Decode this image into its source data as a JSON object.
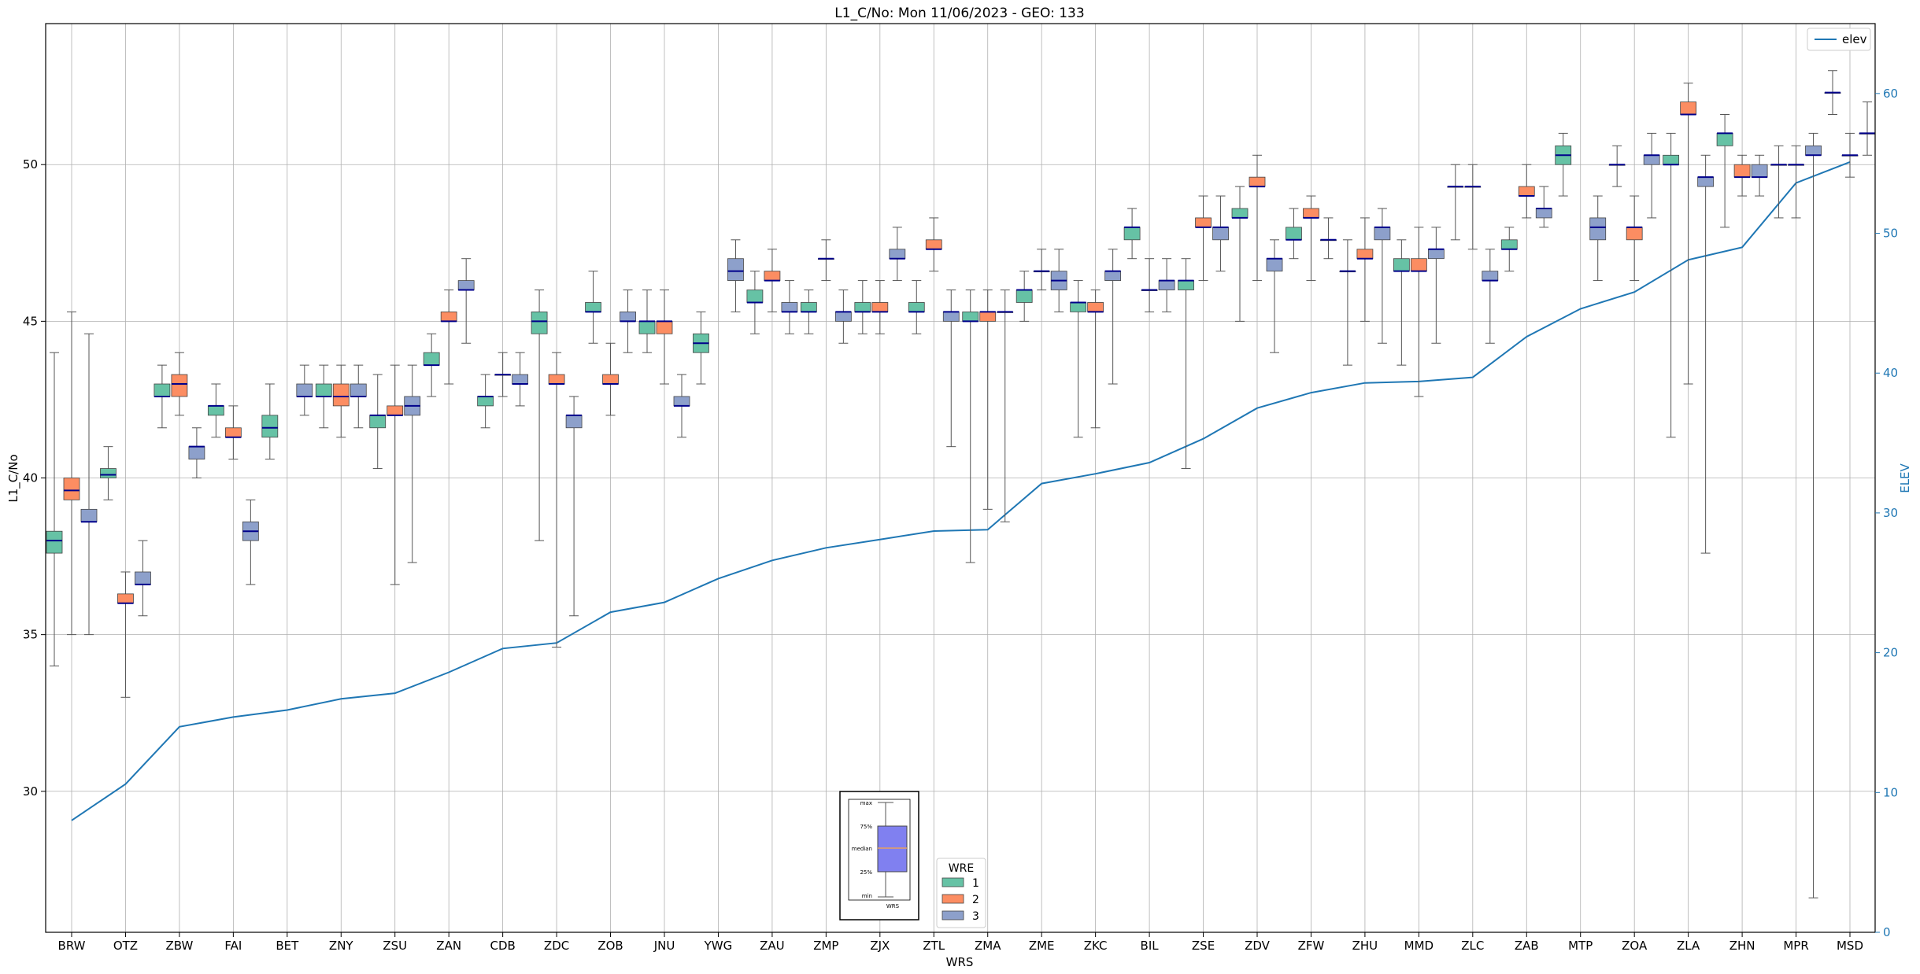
{
  "chart_data": {
    "type": "box",
    "title": "L1_C/No: Mon 11/06/2023 - GEO: 133",
    "xlabel": "WRS",
    "ylabel": "L1_C/No",
    "y2label": "ELEV",
    "ylim": [
      25.5,
      54.5
    ],
    "y2lim": [
      0,
      65
    ],
    "yticks": [
      30,
      35,
      40,
      45,
      50
    ],
    "y2ticks": [
      0,
      10,
      20,
      30,
      40,
      50,
      60
    ],
    "grid": true,
    "categories": [
      "BRW",
      "OTZ",
      "ZBW",
      "FAI",
      "BET",
      "ZNY",
      "ZSU",
      "ZAN",
      "CDB",
      "ZDC",
      "ZOB",
      "JNU",
      "YWG",
      "ZAU",
      "ZMP",
      "ZJX",
      "ZTL",
      "ZMA",
      "ZME",
      "ZKC",
      "BIL",
      "ZSE",
      "ZDV",
      "ZFW",
      "ZHU",
      "MMD",
      "ZLC",
      "ZAB",
      "MTP",
      "ZOA",
      "ZLA",
      "ZHN",
      "MPR",
      "MSD"
    ],
    "legend": {
      "title": "WRE",
      "entries": [
        "1",
        "2",
        "3"
      ],
      "colors": [
        "#66c2a5",
        "#fc8d62",
        "#8da0cb"
      ],
      "placement": "lower-center"
    },
    "line_legend": {
      "label": "elev",
      "placement": "top-right"
    },
    "box_key": {
      "labels": [
        "max",
        "75%",
        "median",
        "25%",
        "min"
      ],
      "xlabel": "WRS"
    },
    "elev": [
      8,
      10.6,
      14.7,
      15.4,
      15.9,
      16.7,
      17.1,
      18.6,
      20.3,
      20.7,
      22.9,
      23.6,
      25.3,
      26.6,
      27.5,
      28.1,
      28.7,
      28.8,
      32.1,
      32.8,
      33.6,
      35.3,
      37.5,
      38.6,
      39.3,
      39.4,
      39.7,
      42.6,
      44.6,
      45.8,
      48.1,
      49,
      53.6,
      55.1
    ],
    "boxes": [
      {
        "wrs": "BRW",
        "wre": 1,
        "min": 34,
        "q1": 37.6,
        "median": 38,
        "q3": 38.3,
        "max": 44
      },
      {
        "wrs": "BRW",
        "wre": 2,
        "min": 35,
        "q1": 39.3,
        "median": 39.6,
        "q3": 40,
        "max": 45.3
      },
      {
        "wrs": "BRW",
        "wre": 3,
        "min": 35,
        "q1": 38.6,
        "median": 38.6,
        "q3": 39,
        "max": 44.6
      },
      {
        "wrs": "OTZ",
        "wre": 1,
        "min": 39.3,
        "q1": 40,
        "median": 40.1,
        "q3": 40.3,
        "max": 41
      },
      {
        "wrs": "OTZ",
        "wre": 2,
        "min": 33,
        "q1": 36,
        "median": 36,
        "q3": 36.3,
        "max": 37
      },
      {
        "wrs": "OTZ",
        "wre": 3,
        "min": 35.6,
        "q1": 36.6,
        "median": 36.6,
        "q3": 37,
        "max": 38
      },
      {
        "wrs": "ZBW",
        "wre": 1,
        "min": 41.6,
        "q1": 42.6,
        "median": 42.6,
        "q3": 43,
        "max": 43.6
      },
      {
        "wrs": "ZBW",
        "wre": 2,
        "min": 42,
        "q1": 42.6,
        "median": 43,
        "q3": 43.3,
        "max": 44
      },
      {
        "wrs": "ZBW",
        "wre": 3,
        "min": 40,
        "q1": 40.6,
        "median": 41,
        "q3": 41,
        "max": 41.6
      },
      {
        "wrs": "FAI",
        "wre": 1,
        "min": 41.3,
        "q1": 42,
        "median": 42.3,
        "q3": 42.3,
        "max": 43
      },
      {
        "wrs": "FAI",
        "wre": 2,
        "min": 40.6,
        "q1": 41.3,
        "median": 41.3,
        "q3": 41.6,
        "max": 42.3
      },
      {
        "wrs": "FAI",
        "wre": 3,
        "min": 36.6,
        "q1": 38,
        "median": 38.3,
        "q3": 38.6,
        "max": 39.3
      },
      {
        "wrs": "BET",
        "wre": 1,
        "min": 40.6,
        "q1": 41.3,
        "median": 41.6,
        "q3": 42,
        "max": 43
      },
      {
        "wrs": "BET",
        "wre": 3,
        "min": 42,
        "q1": 42.6,
        "median": 42.6,
        "q3": 43,
        "max": 43.6
      },
      {
        "wrs": "ZNY",
        "wre": 1,
        "min": 41.6,
        "q1": 42.6,
        "median": 42.6,
        "q3": 43,
        "max": 43.6
      },
      {
        "wrs": "ZNY",
        "wre": 2,
        "min": 41.3,
        "q1": 42.3,
        "median": 42.6,
        "q3": 43,
        "max": 43.6
      },
      {
        "wrs": "ZNY",
        "wre": 3,
        "min": 41.6,
        "q1": 42.6,
        "median": 42.6,
        "q3": 43,
        "max": 43.6
      },
      {
        "wrs": "ZSU",
        "wre": 1,
        "min": 40.3,
        "q1": 41.6,
        "median": 42,
        "q3": 42,
        "max": 43.3
      },
      {
        "wrs": "ZSU",
        "wre": 2,
        "min": 36.6,
        "q1": 42,
        "median": 42,
        "q3": 42.3,
        "max": 43.6
      },
      {
        "wrs": "ZSU",
        "wre": 3,
        "min": 37.3,
        "q1": 42,
        "median": 42.3,
        "q3": 42.6,
        "max": 43.6
      },
      {
        "wrs": "ZAN",
        "wre": 1,
        "min": 42.6,
        "q1": 43.6,
        "median": 43.6,
        "q3": 44,
        "max": 44.6
      },
      {
        "wrs": "ZAN",
        "wre": 2,
        "min": 43,
        "q1": 45,
        "median": 45,
        "q3": 45.3,
        "max": 46
      },
      {
        "wrs": "ZAN",
        "wre": 3,
        "min": 44.3,
        "q1": 46,
        "median": 46,
        "q3": 46.3,
        "max": 47
      },
      {
        "wrs": "CDB",
        "wre": 1,
        "min": 41.6,
        "q1": 42.3,
        "median": 42.6,
        "q3": 42.6,
        "max": 43.3
      },
      {
        "wrs": "CDB",
        "wre": 2,
        "min": 42.6,
        "q1": 43.3,
        "median": 43.3,
        "q3": 43.3,
        "max": 44
      },
      {
        "wrs": "CDB",
        "wre": 3,
        "min": 42.3,
        "q1": 43,
        "median": 43,
        "q3": 43.3,
        "max": 44
      },
      {
        "wrs": "ZDC",
        "wre": 1,
        "min": 38,
        "q1": 44.6,
        "median": 45,
        "q3": 45.3,
        "max": 46
      },
      {
        "wrs": "ZDC",
        "wre": 2,
        "min": 34.6,
        "q1": 43,
        "median": 43,
        "q3": 43.3,
        "max": 44
      },
      {
        "wrs": "ZDC",
        "wre": 3,
        "min": 35.6,
        "q1": 41.6,
        "median": 42,
        "q3": 42,
        "max": 42.6
      },
      {
        "wrs": "ZOB",
        "wre": 1,
        "min": 44.3,
        "q1": 45.3,
        "median": 45.3,
        "q3": 45.6,
        "max": 46.6
      },
      {
        "wrs": "ZOB",
        "wre": 2,
        "min": 42,
        "q1": 43,
        "median": 43,
        "q3": 43.3,
        "max": 44.3
      },
      {
        "wrs": "ZOB",
        "wre": 3,
        "min": 44,
        "q1": 45,
        "median": 45,
        "q3": 45.3,
        "max": 46
      },
      {
        "wrs": "JNU",
        "wre": 1,
        "min": 44,
        "q1": 44.6,
        "median": 45,
        "q3": 45,
        "max": 46
      },
      {
        "wrs": "JNU",
        "wre": 2,
        "min": 43,
        "q1": 44.6,
        "median": 45,
        "q3": 45,
        "max": 46
      },
      {
        "wrs": "JNU",
        "wre": 3,
        "min": 41.3,
        "q1": 42.3,
        "median": 42.3,
        "q3": 42.6,
        "max": 43.3
      },
      {
        "wrs": "YWG",
        "wre": 1,
        "min": 43,
        "q1": 44,
        "median": 44.3,
        "q3": 44.6,
        "max": 45.3
      },
      {
        "wrs": "YWG",
        "wre": 3,
        "min": 45.3,
        "q1": 46.3,
        "median": 46.6,
        "q3": 47,
        "max": 47.6
      },
      {
        "wrs": "ZAU",
        "wre": 1,
        "min": 44.6,
        "q1": 45.6,
        "median": 45.6,
        "q3": 46,
        "max": 46.6
      },
      {
        "wrs": "ZAU",
        "wre": 2,
        "min": 45.3,
        "q1": 46.3,
        "median": 46.3,
        "q3": 46.6,
        "max": 47.3
      },
      {
        "wrs": "ZAU",
        "wre": 3,
        "min": 44.6,
        "q1": 45.3,
        "median": 45.3,
        "q3": 45.6,
        "max": 46.3
      },
      {
        "wrs": "ZMP",
        "wre": 1,
        "min": 44.6,
        "q1": 45.3,
        "median": 45.3,
        "q3": 45.6,
        "max": 46
      },
      {
        "wrs": "ZMP",
        "wre": 2,
        "min": 46.3,
        "q1": 47,
        "median": 47,
        "q3": 47,
        "max": 47.6
      },
      {
        "wrs": "ZMP",
        "wre": 3,
        "min": 44.3,
        "q1": 45,
        "median": 45.3,
        "q3": 45.3,
        "max": 46
      },
      {
        "wrs": "ZJX",
        "wre": 1,
        "min": 44.6,
        "q1": 45.3,
        "median": 45.3,
        "q3": 45.6,
        "max": 46.3
      },
      {
        "wrs": "ZJX",
        "wre": 2,
        "min": 44.6,
        "q1": 45.3,
        "median": 45.3,
        "q3": 45.6,
        "max": 46.3
      },
      {
        "wrs": "ZJX",
        "wre": 3,
        "min": 46.3,
        "q1": 47,
        "median": 47,
        "q3": 47.3,
        "max": 48
      },
      {
        "wrs": "ZTL",
        "wre": 1,
        "min": 44.6,
        "q1": 45.3,
        "median": 45.3,
        "q3": 45.6,
        "max": 46.3
      },
      {
        "wrs": "ZTL",
        "wre": 2,
        "min": 46.6,
        "q1": 47.3,
        "median": 47.3,
        "q3": 47.6,
        "max": 48.3
      },
      {
        "wrs": "ZTL",
        "wre": 3,
        "min": 41,
        "q1": 45,
        "median": 45.3,
        "q3": 45.3,
        "max": 46
      },
      {
        "wrs": "ZMA",
        "wre": 1,
        "min": 37.3,
        "q1": 45,
        "median": 45,
        "q3": 45.3,
        "max": 46
      },
      {
        "wrs": "ZMA",
        "wre": 2,
        "min": 39,
        "q1": 45,
        "median": 45.3,
        "q3": 45.3,
        "max": 46
      },
      {
        "wrs": "ZMA",
        "wre": 3,
        "min": 38.6,
        "q1": 45.3,
        "median": 45.3,
        "q3": 45.3,
        "max": 46
      },
      {
        "wrs": "ZME",
        "wre": 1,
        "min": 45,
        "q1": 45.6,
        "median": 46,
        "q3": 46,
        "max": 46.6
      },
      {
        "wrs": "ZME",
        "wre": 2,
        "min": 46,
        "q1": 46.6,
        "median": 46.6,
        "q3": 46.6,
        "max": 47.3
      },
      {
        "wrs": "ZME",
        "wre": 3,
        "min": 45.3,
        "q1": 46,
        "median": 46.3,
        "q3": 46.6,
        "max": 47.3
      },
      {
        "wrs": "ZKC",
        "wre": 1,
        "min": 41.3,
        "q1": 45.3,
        "median": 45.6,
        "q3": 45.6,
        "max": 46.3
      },
      {
        "wrs": "ZKC",
        "wre": 2,
        "min": 41.6,
        "q1": 45.3,
        "median": 45.3,
        "q3": 45.6,
        "max": 46
      },
      {
        "wrs": "ZKC",
        "wre": 3,
        "min": 43,
        "q1": 46.3,
        "median": 46.6,
        "q3": 46.6,
        "max": 47.3
      },
      {
        "wrs": "BIL",
        "wre": 1,
        "min": 47,
        "q1": 47.6,
        "median": 48,
        "q3": 48,
        "max": 48.6
      },
      {
        "wrs": "BIL",
        "wre": 2,
        "min": 45.3,
        "q1": 46,
        "median": 46,
        "q3": 46,
        "max": 47
      },
      {
        "wrs": "BIL",
        "wre": 3,
        "min": 45.3,
        "q1": 46,
        "median": 46.3,
        "q3": 46.3,
        "max": 47
      },
      {
        "wrs": "ZSE",
        "wre": 1,
        "min": 40.3,
        "q1": 46,
        "median": 46.3,
        "q3": 46.3,
        "max": 47
      },
      {
        "wrs": "ZSE",
        "wre": 2,
        "min": 46.3,
        "q1": 48,
        "median": 48,
        "q3": 48.3,
        "max": 49
      },
      {
        "wrs": "ZSE",
        "wre": 3,
        "min": 46.6,
        "q1": 47.6,
        "median": 48,
        "q3": 48,
        "max": 49
      },
      {
        "wrs": "ZDV",
        "wre": 1,
        "min": 45,
        "q1": 48.3,
        "median": 48.3,
        "q3": 48.6,
        "max": 49.3
      },
      {
        "wrs": "ZDV",
        "wre": 2,
        "min": 46.3,
        "q1": 49.3,
        "median": 49.3,
        "q3": 49.6,
        "max": 50.3
      },
      {
        "wrs": "ZDV",
        "wre": 3,
        "min": 44,
        "q1": 46.6,
        "median": 47,
        "q3": 47,
        "max": 47.6
      },
      {
        "wrs": "ZFW",
        "wre": 1,
        "min": 47,
        "q1": 47.6,
        "median": 47.6,
        "q3": 48,
        "max": 48.6
      },
      {
        "wrs": "ZFW",
        "wre": 2,
        "min": 46.3,
        "q1": 48.3,
        "median": 48.3,
        "q3": 48.6,
        "max": 49
      },
      {
        "wrs": "ZFW",
        "wre": 3,
        "min": 47,
        "q1": 47.6,
        "median": 47.6,
        "q3": 47.6,
        "max": 48.3
      },
      {
        "wrs": "ZHU",
        "wre": 1,
        "min": 43.6,
        "q1": 46.6,
        "median": 46.6,
        "q3": 46.6,
        "max": 47.6
      },
      {
        "wrs": "ZHU",
        "wre": 2,
        "min": 45,
        "q1": 47,
        "median": 47,
        "q3": 47.3,
        "max": 48.3
      },
      {
        "wrs": "ZHU",
        "wre": 3,
        "min": 44.3,
        "q1": 47.6,
        "median": 48,
        "q3": 48,
        "max": 48.6
      },
      {
        "wrs": "MMD",
        "wre": 1,
        "min": 43.6,
        "q1": 46.6,
        "median": 46.6,
        "q3": 47,
        "max": 47.6
      },
      {
        "wrs": "MMD",
        "wre": 2,
        "min": 42.6,
        "q1": 46.6,
        "median": 46.6,
        "q3": 47,
        "max": 48
      },
      {
        "wrs": "MMD",
        "wre": 3,
        "min": 44.3,
        "q1": 47,
        "median": 47.3,
        "q3": 47.3,
        "max": 48
      },
      {
        "wrs": "ZLC",
        "wre": 1,
        "min": 47.6,
        "q1": 49.3,
        "median": 49.3,
        "q3": 49.3,
        "max": 50
      },
      {
        "wrs": "ZLC",
        "wre": 2,
        "min": 47.3,
        "q1": 49.3,
        "median": 49.3,
        "q3": 49.3,
        "max": 50
      },
      {
        "wrs": "ZLC",
        "wre": 3,
        "min": 44.3,
        "q1": 46.3,
        "median": 46.3,
        "q3": 46.6,
        "max": 47.3
      },
      {
        "wrs": "ZAB",
        "wre": 1,
        "min": 46.6,
        "q1": 47.3,
        "median": 47.3,
        "q3": 47.6,
        "max": 48
      },
      {
        "wrs": "ZAB",
        "wre": 2,
        "min": 48.3,
        "q1": 49,
        "median": 49,
        "q3": 49.3,
        "max": 50
      },
      {
        "wrs": "ZAB",
        "wre": 3,
        "min": 48,
        "q1": 48.3,
        "median": 48.6,
        "q3": 48.6,
        "max": 49.3
      },
      {
        "wrs": "MTP",
        "wre": 1,
        "min": 49,
        "q1": 50,
        "median": 50.3,
        "q3": 50.6,
        "max": 51
      },
      {
        "wrs": "MTP",
        "wre": 3,
        "min": 46.3,
        "q1": 47.6,
        "median": 48,
        "q3": 48.3,
        "max": 49
      },
      {
        "wrs": "ZOA",
        "wre": 1,
        "min": 49.3,
        "q1": 50,
        "median": 50,
        "q3": 50,
        "max": 50.6
      },
      {
        "wrs": "ZOA",
        "wre": 2,
        "min": 46.3,
        "q1": 47.6,
        "median": 48,
        "q3": 48,
        "max": 49
      },
      {
        "wrs": "ZOA",
        "wre": 3,
        "min": 48.3,
        "q1": 50,
        "median": 50.3,
        "q3": 50.3,
        "max": 51
      },
      {
        "wrs": "ZLA",
        "wre": 1,
        "min": 41.3,
        "q1": 50,
        "median": 50,
        "q3": 50.3,
        "max": 51
      },
      {
        "wrs": "ZLA",
        "wre": 2,
        "min": 43,
        "q1": 51.6,
        "median": 51.6,
        "q3": 52,
        "max": 52.6
      },
      {
        "wrs": "ZLA",
        "wre": 3,
        "min": 37.6,
        "q1": 49.3,
        "median": 49.6,
        "q3": 49.6,
        "max": 50.3
      },
      {
        "wrs": "ZHN",
        "wre": 1,
        "min": 48,
        "q1": 50.6,
        "median": 51,
        "q3": 51,
        "max": 51.6
      },
      {
        "wrs": "ZHN",
        "wre": 2,
        "min": 49,
        "q1": 49.6,
        "median": 49.6,
        "q3": 50,
        "max": 50.3
      },
      {
        "wrs": "ZHN",
        "wre": 3,
        "min": 49,
        "q1": 49.6,
        "median": 49.6,
        "q3": 50,
        "max": 50.3
      },
      {
        "wrs": "MPR",
        "wre": 1,
        "min": 48.3,
        "q1": 50,
        "median": 50,
        "q3": 50,
        "max": 50.6
      },
      {
        "wrs": "MPR",
        "wre": 2,
        "min": 48.3,
        "q1": 50,
        "median": 50,
        "q3": 50,
        "max": 50.6
      },
      {
        "wrs": "MPR",
        "wre": 3,
        "min": 26.6,
        "q1": 50.3,
        "median": 50.3,
        "q3": 50.6,
        "max": 51
      },
      {
        "wrs": "MSD",
        "wre": 1,
        "min": 51.6,
        "q1": 52.3,
        "median": 52.3,
        "q3": 52.3,
        "max": 53
      },
      {
        "wrs": "MSD",
        "wre": 2,
        "min": 49.6,
        "q1": 50.3,
        "median": 50.3,
        "q3": 50.3,
        "max": 51
      },
      {
        "wrs": "MSD",
        "wre": 3,
        "min": 50.3,
        "q1": 51,
        "median": 51,
        "q3": 51,
        "max": 52
      }
    ]
  }
}
